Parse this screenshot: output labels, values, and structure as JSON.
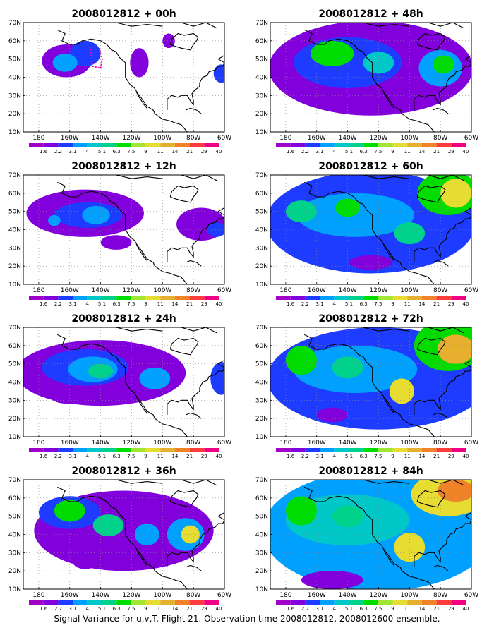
{
  "colors": {
    "levels": [
      "#a000c8",
      "#8200dc",
      "#1e3cff",
      "#00a0ff",
      "#00c8c8",
      "#00d28c",
      "#00dc00",
      "#a0e632",
      "#e6dc32",
      "#e6af2d",
      "#f08228",
      "#fa3c3c",
      "#f00082"
    ],
    "coast": "#000000",
    "grid": "#888888",
    "track": "#ff00aa"
  },
  "chart_data": {
    "type": "heatmap",
    "caption": "Signal Variance for u,v,T. Flight 21. Observation time 2008012812. 2008012600 ensemble.",
    "lon_ticks": [
      "180",
      "160W",
      "140W",
      "120W",
      "100W",
      "80W",
      "60W"
    ],
    "lat_ticks": [
      "70N",
      "60N",
      "50N",
      "40N",
      "30N",
      "20N",
      "10N"
    ],
    "colorbar_labels": [
      "1.6",
      "2.2",
      "3.1",
      "4",
      "5.1",
      "6.3",
      "7.5",
      "9",
      "11",
      "14",
      "21",
      "29",
      "40"
    ],
    "panels": [
      {
        "title": "2008012812 + 00h",
        "blobs": [
          {
            "lon": -162,
            "lat": 49,
            "rx": 16,
            "ry": 9,
            "level": 1
          },
          {
            "lon": -150,
            "lat": 53,
            "rx": 10,
            "ry": 7,
            "level": 2
          },
          {
            "lon": -163,
            "lat": 48,
            "rx": 8,
            "ry": 5,
            "level": 3
          },
          {
            "lon": -115,
            "lat": 48,
            "rx": 6,
            "ry": 8,
            "level": 1
          },
          {
            "lon": -96,
            "lat": 60,
            "rx": 4,
            "ry": 4,
            "level": 1
          },
          {
            "lon": -62,
            "lat": 42,
            "rx": 5,
            "ry": 5,
            "level": 2
          }
        ],
        "track": [
          [
            -147,
            57
          ],
          [
            -146,
            52
          ],
          [
            -145,
            46
          ],
          [
            -140,
            45
          ],
          [
            -139,
            50
          ],
          [
            -141,
            56
          ]
        ]
      },
      {
        "title": "2008012812 + 12h",
        "blobs": [
          {
            "lon": -150,
            "lat": 49,
            "rx": 38,
            "ry": 13,
            "level": 1
          },
          {
            "lon": -148,
            "lat": 48,
            "rx": 22,
            "ry": 7,
            "level": 2
          },
          {
            "lon": -143,
            "lat": 48,
            "rx": 9,
            "ry": 5,
            "level": 3
          },
          {
            "lon": -170,
            "lat": 45,
            "rx": 4,
            "ry": 3,
            "level": 3
          },
          {
            "lon": -75,
            "lat": 43,
            "rx": 16,
            "ry": 9,
            "level": 1
          },
          {
            "lon": -130,
            "lat": 33,
            "rx": 10,
            "ry": 4,
            "level": 1
          },
          {
            "lon": -65,
            "lat": 40,
            "rx": 6,
            "ry": 4,
            "level": 2
          }
        ],
        "track": []
      },
      {
        "title": "2008012812 + 24h",
        "blobs": [
          {
            "lon": -140,
            "lat": 45,
            "rx": 55,
            "ry": 18,
            "level": 1
          },
          {
            "lon": -150,
            "lat": 48,
            "rx": 28,
            "ry": 10,
            "level": 2
          },
          {
            "lon": -145,
            "lat": 47,
            "rx": 16,
            "ry": 7,
            "level": 3
          },
          {
            "lon": -140,
            "lat": 46,
            "rx": 8,
            "ry": 4,
            "level": 5
          },
          {
            "lon": -105,
            "lat": 42,
            "rx": 10,
            "ry": 6,
            "level": 3
          },
          {
            "lon": -62,
            "lat": 42,
            "rx": 7,
            "ry": 9,
            "level": 2
          },
          {
            "lon": -160,
            "lat": 33,
            "rx": 14,
            "ry": 5,
            "level": 1
          }
        ],
        "track": []
      },
      {
        "title": "2008012812 + 36h",
        "blobs": [
          {
            "lon": -125,
            "lat": 42,
            "rx": 58,
            "ry": 22,
            "level": 1
          },
          {
            "lon": -160,
            "lat": 52,
            "rx": 20,
            "ry": 9,
            "level": 2
          },
          {
            "lon": -160,
            "lat": 53,
            "rx": 10,
            "ry": 6,
            "level": 6
          },
          {
            "lon": -135,
            "lat": 45,
            "rx": 10,
            "ry": 6,
            "level": 5
          },
          {
            "lon": -85,
            "lat": 40,
            "rx": 12,
            "ry": 9,
            "level": 3
          },
          {
            "lon": -82,
            "lat": 40,
            "rx": 6,
            "ry": 5,
            "level": 8
          },
          {
            "lon": -110,
            "lat": 40,
            "rx": 8,
            "ry": 6,
            "level": 3
          },
          {
            "lon": -150,
            "lat": 25,
            "rx": 8,
            "ry": 4,
            "level": 1
          }
        ],
        "track": []
      },
      {
        "title": "2008012812 + 48h",
        "blobs": [
          {
            "lon": -125,
            "lat": 45,
            "rx": 66,
            "ry": 26,
            "level": 1
          },
          {
            "lon": -140,
            "lat": 48,
            "rx": 35,
            "ry": 14,
            "level": 2
          },
          {
            "lon": -150,
            "lat": 53,
            "rx": 14,
            "ry": 7,
            "level": 6
          },
          {
            "lon": -120,
            "lat": 48,
            "rx": 10,
            "ry": 6,
            "level": 4
          },
          {
            "lon": -80,
            "lat": 45,
            "rx": 14,
            "ry": 10,
            "level": 3
          },
          {
            "lon": -78,
            "lat": 47,
            "rx": 7,
            "ry": 5,
            "level": 6
          },
          {
            "lon": -105,
            "lat": 28,
            "rx": 14,
            "ry": 5,
            "level": 1
          }
        ],
        "track": []
      },
      {
        "title": "2008012812 + 60h",
        "blobs": [
          {
            "lon": -125,
            "lat": 44,
            "rx": 68,
            "ry": 28,
            "level": 2
          },
          {
            "lon": -135,
            "lat": 48,
            "rx": 38,
            "ry": 12,
            "level": 3
          },
          {
            "lon": -140,
            "lat": 52,
            "rx": 8,
            "ry": 5,
            "level": 6
          },
          {
            "lon": -170,
            "lat": 50,
            "rx": 10,
            "ry": 6,
            "level": 5
          },
          {
            "lon": -75,
            "lat": 60,
            "rx": 20,
            "ry": 12,
            "level": 6
          },
          {
            "lon": -70,
            "lat": 60,
            "rx": 10,
            "ry": 8,
            "level": 8
          },
          {
            "lon": -100,
            "lat": 38,
            "rx": 10,
            "ry": 6,
            "level": 5
          },
          {
            "lon": -125,
            "lat": 22,
            "rx": 14,
            "ry": 4,
            "level": 1
          }
        ],
        "track": []
      },
      {
        "title": "2008012812 + 72h",
        "blobs": [
          {
            "lon": -120,
            "lat": 42,
            "rx": 72,
            "ry": 28,
            "level": 2
          },
          {
            "lon": -135,
            "lat": 47,
            "rx": 40,
            "ry": 13,
            "level": 3
          },
          {
            "lon": -170,
            "lat": 52,
            "rx": 10,
            "ry": 8,
            "level": 6
          },
          {
            "lon": -140,
            "lat": 48,
            "rx": 10,
            "ry": 6,
            "level": 5
          },
          {
            "lon": -105,
            "lat": 35,
            "rx": 8,
            "ry": 7,
            "level": 8
          },
          {
            "lon": -75,
            "lat": 60,
            "rx": 22,
            "ry": 14,
            "level": 6
          },
          {
            "lon": -70,
            "lat": 58,
            "rx": 12,
            "ry": 8,
            "level": 9
          },
          {
            "lon": -150,
            "lat": 22,
            "rx": 10,
            "ry": 4,
            "level": 1
          }
        ],
        "track": []
      },
      {
        "title": "2008012812 + 84h",
        "blobs": [
          {
            "lon": -120,
            "lat": 42,
            "rx": 75,
            "ry": 33,
            "level": 3
          },
          {
            "lon": -140,
            "lat": 48,
            "rx": 40,
            "ry": 14,
            "level": 4
          },
          {
            "lon": -170,
            "lat": 53,
            "rx": 10,
            "ry": 8,
            "level": 6
          },
          {
            "lon": -140,
            "lat": 50,
            "rx": 10,
            "ry": 6,
            "level": 5
          },
          {
            "lon": -100,
            "lat": 33,
            "rx": 10,
            "ry": 8,
            "level": 8
          },
          {
            "lon": -75,
            "lat": 62,
            "rx": 24,
            "ry": 12,
            "level": 8
          },
          {
            "lon": -70,
            "lat": 64,
            "rx": 12,
            "ry": 6,
            "level": 10
          },
          {
            "lon": -150,
            "lat": 15,
            "rx": 20,
            "ry": 5,
            "level": 1
          }
        ],
        "track": []
      }
    ]
  }
}
